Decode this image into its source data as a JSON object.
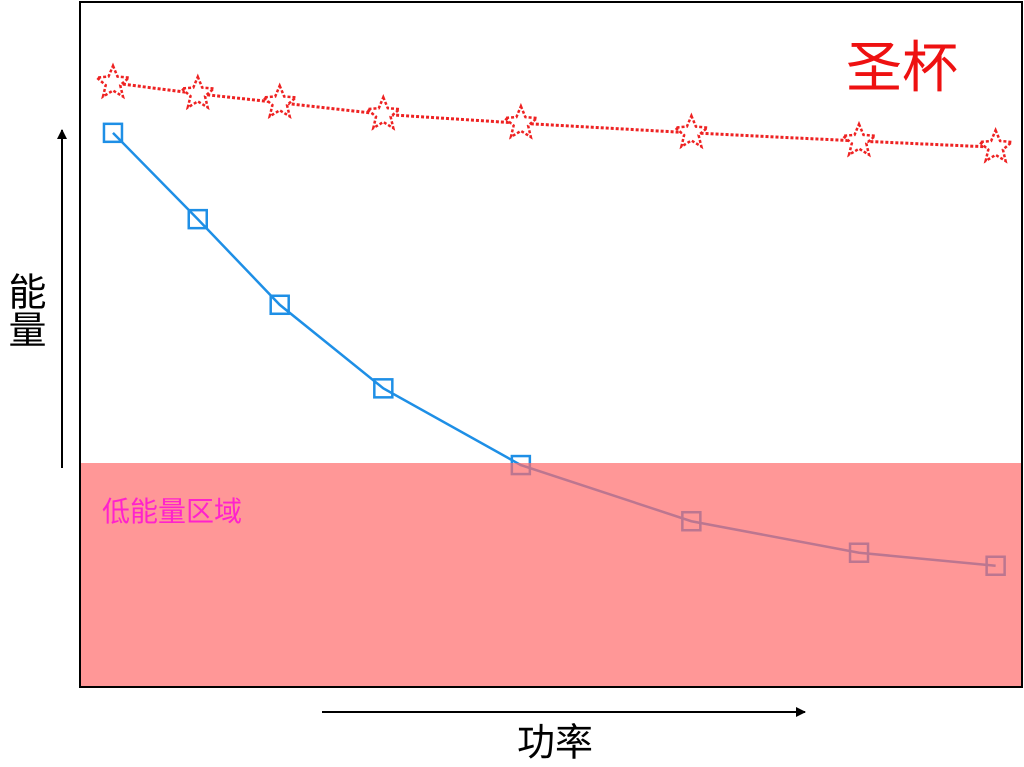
{
  "chart_data": {
    "type": "line",
    "x_label": "功率",
    "y_label": "能量",
    "x": [
      3.5,
      12.5,
      21.2,
      32.2,
      46.8,
      64.9,
      82.7,
      97.2
    ],
    "xlim": [
      0,
      100
    ],
    "ylim": [
      0,
      100
    ],
    "series": [
      {
        "name": "圣杯",
        "color": "#ee2222",
        "marker": "star",
        "dashed": true,
        "values": [
          88.2,
          86.6,
          85.3,
          83.6,
          82.3,
          80.9,
          79.7,
          78.8
        ]
      },
      {
        "color": "#1e8fe6",
        "marker": "square",
        "dashed": false,
        "values": [
          80.9,
          68.3,
          55.8,
          43.6,
          32.4,
          24.2,
          19.6,
          17.7
        ]
      }
    ],
    "regions": [
      {
        "label": "低能量区域",
        "y_range": [
          0,
          32.7
        ],
        "color": "#ff6b6b",
        "label_color": "#ff22cc"
      }
    ]
  }
}
